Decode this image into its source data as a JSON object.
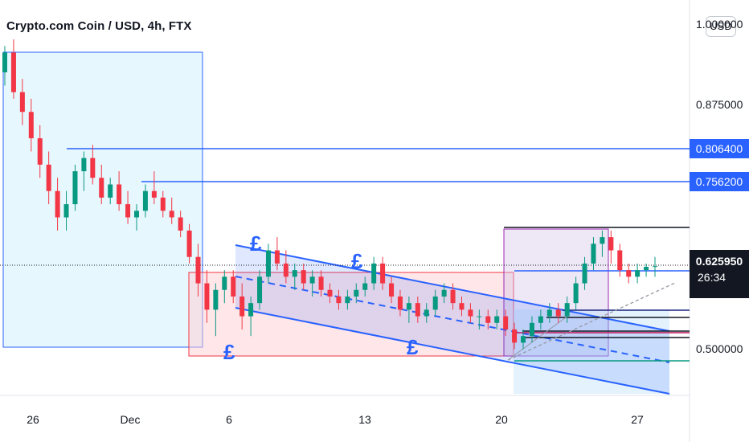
{
  "header": {
    "title": "Crypto.com Coin / USD, 4h, FTX",
    "currency_button": "USD"
  },
  "chart_data": {
    "type": "candlestick",
    "symbol": "Crypto.com Coin / USD",
    "timeframe": "4h",
    "exchange": "FTX",
    "y_axis": {
      "ticks": [
        1.0,
        0.875,
        0.5
      ],
      "tick_labels": [
        "1.000000",
        "0.875000",
        "0.500000"
      ],
      "range": [
        0.43,
        1.02
      ]
    },
    "x_axis": {
      "tick_labels": [
        "26",
        "Dec",
        "6",
        "13",
        "20",
        "27"
      ]
    },
    "price_levels": [
      {
        "label": "0.806400",
        "value": 0.8064,
        "color": "#2962ff"
      },
      {
        "label": "0.756200",
        "value": 0.7562,
        "color": "#2962ff"
      }
    ],
    "current_price": {
      "label": "0.625950",
      "value": 0.62595,
      "countdown": "26:34"
    },
    "annotations": [
      "£",
      "£",
      "£",
      "£"
    ],
    "ohlc_approx": [
      [
        0.92,
        0.96,
        0.9,
        0.95
      ],
      [
        0.95,
        0.97,
        0.88,
        0.89
      ],
      [
        0.89,
        0.91,
        0.84,
        0.86
      ],
      [
        0.86,
        0.88,
        0.8,
        0.82
      ],
      [
        0.82,
        0.84,
        0.76,
        0.78
      ],
      [
        0.78,
        0.8,
        0.72,
        0.74
      ],
      [
        0.74,
        0.76,
        0.68,
        0.7
      ],
      [
        0.7,
        0.74,
        0.68,
        0.72
      ],
      [
        0.72,
        0.78,
        0.71,
        0.77
      ],
      [
        0.77,
        0.8,
        0.74,
        0.79
      ],
      [
        0.79,
        0.81,
        0.75,
        0.76
      ],
      [
        0.76,
        0.78,
        0.72,
        0.73
      ],
      [
        0.73,
        0.76,
        0.72,
        0.75
      ],
      [
        0.75,
        0.77,
        0.71,
        0.72
      ],
      [
        0.72,
        0.74,
        0.69,
        0.7
      ],
      [
        0.7,
        0.72,
        0.68,
        0.71
      ],
      [
        0.71,
        0.75,
        0.7,
        0.74
      ],
      [
        0.74,
        0.77,
        0.72,
        0.73
      ],
      [
        0.73,
        0.74,
        0.7,
        0.71
      ],
      [
        0.71,
        0.73,
        0.69,
        0.7
      ],
      [
        0.7,
        0.71,
        0.67,
        0.68
      ],
      [
        0.68,
        0.69,
        0.63,
        0.64
      ],
      [
        0.64,
        0.66,
        0.58,
        0.6
      ],
      [
        0.6,
        0.62,
        0.54,
        0.56
      ],
      [
        0.56,
        0.6,
        0.52,
        0.59
      ],
      [
        0.59,
        0.62,
        0.57,
        0.61
      ],
      [
        0.61,
        0.62,
        0.57,
        0.58
      ],
      [
        0.58,
        0.6,
        0.53,
        0.55
      ],
      [
        0.55,
        0.58,
        0.52,
        0.57
      ],
      [
        0.57,
        0.62,
        0.56,
        0.61
      ],
      [
        0.61,
        0.66,
        0.6,
        0.65
      ],
      [
        0.65,
        0.67,
        0.62,
        0.63
      ],
      [
        0.63,
        0.65,
        0.6,
        0.61
      ],
      [
        0.61,
        0.63,
        0.59,
        0.62
      ],
      [
        0.62,
        0.63,
        0.59,
        0.6
      ],
      [
        0.6,
        0.62,
        0.58,
        0.61
      ],
      [
        0.61,
        0.62,
        0.58,
        0.59
      ],
      [
        0.59,
        0.6,
        0.57,
        0.58
      ],
      [
        0.58,
        0.59,
        0.56,
        0.57
      ],
      [
        0.57,
        0.59,
        0.56,
        0.58
      ],
      [
        0.58,
        0.6,
        0.57,
        0.59
      ],
      [
        0.59,
        0.61,
        0.58,
        0.6
      ],
      [
        0.6,
        0.64,
        0.59,
        0.63
      ],
      [
        0.63,
        0.64,
        0.59,
        0.6
      ],
      [
        0.6,
        0.61,
        0.57,
        0.58
      ],
      [
        0.58,
        0.59,
        0.55,
        0.56
      ],
      [
        0.56,
        0.58,
        0.54,
        0.57
      ],
      [
        0.57,
        0.58,
        0.54,
        0.55
      ],
      [
        0.55,
        0.57,
        0.54,
        0.56
      ],
      [
        0.56,
        0.59,
        0.55,
        0.58
      ],
      [
        0.58,
        0.6,
        0.57,
        0.59
      ],
      [
        0.59,
        0.6,
        0.56,
        0.57
      ],
      [
        0.57,
        0.58,
        0.55,
        0.56
      ],
      [
        0.56,
        0.57,
        0.54,
        0.55
      ],
      [
        0.55,
        0.56,
        0.53,
        0.55
      ],
      [
        0.55,
        0.56,
        0.53,
        0.54
      ],
      [
        0.54,
        0.56,
        0.53,
        0.55
      ],
      [
        0.55,
        0.56,
        0.52,
        0.53
      ],
      [
        0.53,
        0.54,
        0.5,
        0.51
      ],
      [
        0.51,
        0.53,
        0.5,
        0.52
      ],
      [
        0.52,
        0.55,
        0.51,
        0.54
      ],
      [
        0.54,
        0.56,
        0.53,
        0.55
      ],
      [
        0.55,
        0.57,
        0.54,
        0.56
      ],
      [
        0.56,
        0.57,
        0.54,
        0.55
      ],
      [
        0.55,
        0.58,
        0.54,
        0.57
      ],
      [
        0.57,
        0.61,
        0.56,
        0.6
      ],
      [
        0.6,
        0.64,
        0.59,
        0.63
      ],
      [
        0.63,
        0.67,
        0.62,
        0.66
      ],
      [
        0.66,
        0.68,
        0.64,
        0.67
      ],
      [
        0.67,
        0.68,
        0.63,
        0.65
      ],
      [
        0.65,
        0.66,
        0.61,
        0.62
      ],
      [
        0.62,
        0.63,
        0.6,
        0.61
      ],
      [
        0.61,
        0.63,
        0.6,
        0.62
      ],
      [
        0.62,
        0.63,
        0.61,
        0.625
      ],
      [
        0.625,
        0.64,
        0.61,
        0.626
      ]
    ]
  }
}
